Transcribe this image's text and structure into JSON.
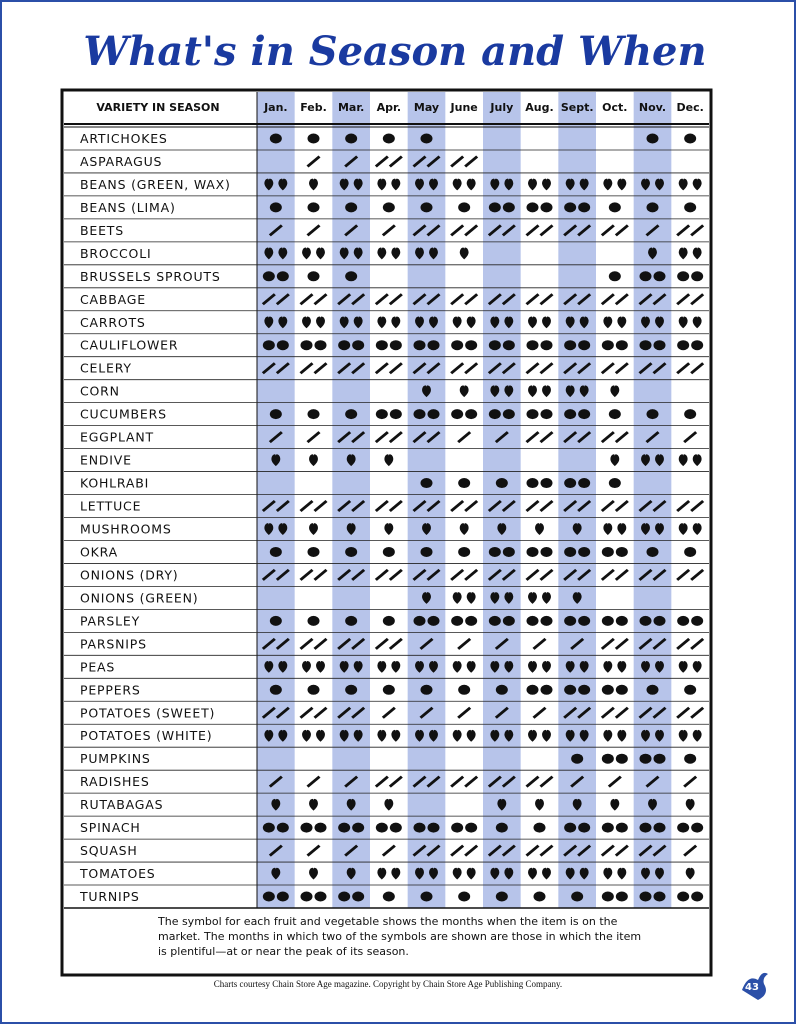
{
  "title": "What's in Season and When",
  "header": {
    "variety": "VARIETY IN SEASON",
    "months": [
      "Jan.",
      "Feb.",
      "Mar.",
      "Apr.",
      "May",
      "June",
      "July",
      "Aug.",
      "Sept.",
      "Oct.",
      "Nov.",
      "Dec."
    ]
  },
  "rows": [
    {
      "name": "ARTICHOKES",
      "counts": [
        1,
        1,
        1,
        1,
        1,
        0,
        0,
        0,
        0,
        0,
        1,
        1
      ]
    },
    {
      "name": "ASPARAGUS",
      "counts": [
        0,
        1,
        1,
        2,
        2,
        2,
        0,
        0,
        0,
        0,
        0,
        0
      ]
    },
    {
      "name": "BEANS (GREEN, WAX)",
      "counts": [
        2,
        1,
        2,
        2,
        2,
        2,
        2,
        2,
        2,
        2,
        2,
        2
      ]
    },
    {
      "name": "BEANS (LIMA)",
      "counts": [
        1,
        1,
        1,
        1,
        1,
        1,
        2,
        2,
        2,
        1,
        1,
        1
      ]
    },
    {
      "name": "BEETS",
      "counts": [
        1,
        1,
        1,
        1,
        2,
        2,
        2,
        2,
        2,
        2,
        1,
        2
      ]
    },
    {
      "name": "BROCCOLI",
      "counts": [
        2,
        2,
        2,
        2,
        2,
        1,
        0,
        0,
        0,
        0,
        1,
        2
      ]
    },
    {
      "name": "BRUSSELS SPROUTS",
      "counts": [
        2,
        1,
        1,
        0,
        0,
        0,
        0,
        0,
        0,
        1,
        2,
        2
      ]
    },
    {
      "name": "CABBAGE",
      "counts": [
        2,
        2,
        2,
        2,
        2,
        2,
        2,
        2,
        2,
        2,
        2,
        2
      ]
    },
    {
      "name": "CARROTS",
      "counts": [
        2,
        2,
        2,
        2,
        2,
        2,
        2,
        2,
        2,
        2,
        2,
        2
      ]
    },
    {
      "name": "CAULIFLOWER",
      "counts": [
        2,
        2,
        2,
        2,
        2,
        2,
        2,
        2,
        2,
        2,
        2,
        2
      ]
    },
    {
      "name": "CELERY",
      "counts": [
        2,
        2,
        2,
        2,
        2,
        2,
        2,
        2,
        2,
        2,
        2,
        2
      ]
    },
    {
      "name": "CORN",
      "counts": [
        0,
        0,
        0,
        0,
        1,
        1,
        2,
        2,
        2,
        1,
        0,
        0
      ]
    },
    {
      "name": "CUCUMBERS",
      "counts": [
        1,
        1,
        1,
        2,
        2,
        2,
        2,
        2,
        2,
        1,
        1,
        1
      ]
    },
    {
      "name": "EGGPLANT",
      "counts": [
        1,
        1,
        2,
        2,
        2,
        1,
        1,
        2,
        2,
        2,
        1,
        1
      ]
    },
    {
      "name": "ENDIVE",
      "counts": [
        1,
        1,
        1,
        1,
        0,
        0,
        0,
        0,
        0,
        1,
        2,
        2
      ]
    },
    {
      "name": "KOHLRABI",
      "counts": [
        0,
        0,
        0,
        0,
        1,
        1,
        1,
        2,
        2,
        1,
        0,
        0
      ]
    },
    {
      "name": "LETTUCE",
      "counts": [
        2,
        2,
        2,
        2,
        2,
        2,
        2,
        2,
        2,
        2,
        2,
        2
      ]
    },
    {
      "name": "MUSHROOMS",
      "counts": [
        2,
        1,
        1,
        1,
        1,
        1,
        1,
        1,
        1,
        2,
        2,
        2
      ]
    },
    {
      "name": "OKRA",
      "counts": [
        1,
        1,
        1,
        1,
        1,
        1,
        2,
        2,
        2,
        2,
        1,
        1
      ]
    },
    {
      "name": "ONIONS (DRY)",
      "counts": [
        2,
        2,
        2,
        2,
        2,
        2,
        2,
        2,
        2,
        2,
        2,
        2
      ]
    },
    {
      "name": "ONIONS (GREEN)",
      "counts": [
        0,
        0,
        0,
        0,
        1,
        2,
        2,
        2,
        1,
        0,
        0,
        0
      ]
    },
    {
      "name": "PARSLEY",
      "counts": [
        1,
        1,
        1,
        1,
        2,
        2,
        2,
        2,
        2,
        2,
        2,
        2
      ]
    },
    {
      "name": "PARSNIPS",
      "counts": [
        2,
        2,
        2,
        2,
        1,
        1,
        1,
        1,
        1,
        2,
        2,
        2
      ]
    },
    {
      "name": "PEAS",
      "counts": [
        2,
        2,
        2,
        2,
        2,
        2,
        2,
        2,
        2,
        2,
        2,
        2
      ]
    },
    {
      "name": "PEPPERS",
      "counts": [
        1,
        1,
        1,
        1,
        1,
        1,
        1,
        2,
        2,
        2,
        1,
        1
      ]
    },
    {
      "name": "POTATOES (SWEET)",
      "counts": [
        2,
        2,
        2,
        1,
        1,
        1,
        1,
        1,
        2,
        2,
        2,
        2
      ]
    },
    {
      "name": "POTATOES (WHITE)",
      "counts": [
        2,
        2,
        2,
        2,
        2,
        2,
        2,
        2,
        2,
        2,
        2,
        2
      ]
    },
    {
      "name": "PUMPKINS",
      "counts": [
        0,
        0,
        0,
        0,
        0,
        0,
        0,
        0,
        1,
        2,
        2,
        1
      ]
    },
    {
      "name": "RADISHES",
      "counts": [
        1,
        1,
        1,
        2,
        2,
        2,
        2,
        2,
        1,
        1,
        1,
        1
      ]
    },
    {
      "name": "RUTABAGAS",
      "counts": [
        1,
        1,
        1,
        1,
        0,
        0,
        1,
        1,
        1,
        1,
        1,
        1
      ]
    },
    {
      "name": "SPINACH",
      "counts": [
        2,
        2,
        2,
        2,
        2,
        2,
        1,
        1,
        2,
        2,
        2,
        2
      ]
    },
    {
      "name": "SQUASH",
      "counts": [
        1,
        1,
        1,
        1,
        2,
        2,
        2,
        2,
        2,
        2,
        2,
        1
      ]
    },
    {
      "name": "TOMATOES",
      "counts": [
        1,
        1,
        1,
        2,
        2,
        2,
        2,
        2,
        2,
        2,
        2,
        1
      ]
    },
    {
      "name": "TURNIPS",
      "counts": [
        2,
        2,
        2,
        1,
        1,
        1,
        1,
        1,
        1,
        2,
        2,
        2
      ]
    }
  ],
  "note": "The symbol for each fruit and vegetable shows the months when the item is on the market. The months in which two of the symbols are shown are those in which the item is plentiful—at or near the peak of its season.",
  "credit": "Charts courtesy Chain Store Age magazine. Copyright by Chain Store Age Publishing Company.",
  "page_number": "43"
}
